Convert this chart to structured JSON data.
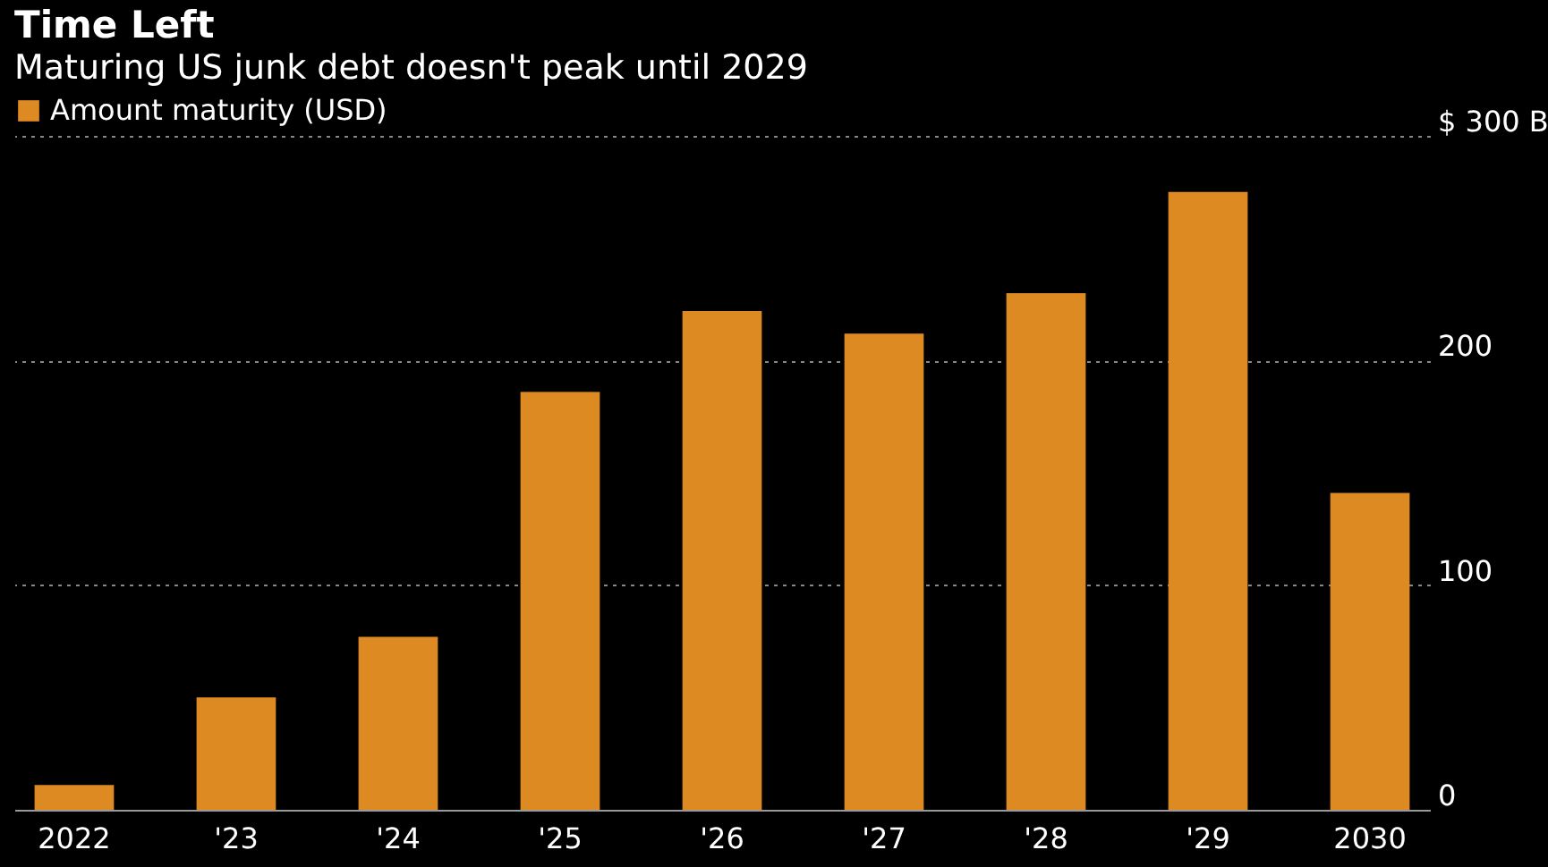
{
  "chart_data": {
    "type": "bar",
    "title": "Time Left",
    "subtitle": "Maturing US junk debt doesn't peak until 2029",
    "categories": [
      "2022",
      "'23",
      "'24",
      "'25",
      "'26",
      "'27",
      "'28",
      "'29",
      "2030"
    ],
    "series": [
      {
        "name": "Amount maturity (USD)",
        "color": "#dd8a23",
        "values": [
          11,
          50,
          77,
          186,
          222,
          212,
          230,
          275,
          141
        ]
      }
    ],
    "ylim": [
      0,
      300
    ],
    "yticks": [
      0,
      100,
      200,
      {
        "value": 300,
        "label": "$ 300 B"
      }
    ],
    "grid": "y",
    "legend": "top left"
  }
}
